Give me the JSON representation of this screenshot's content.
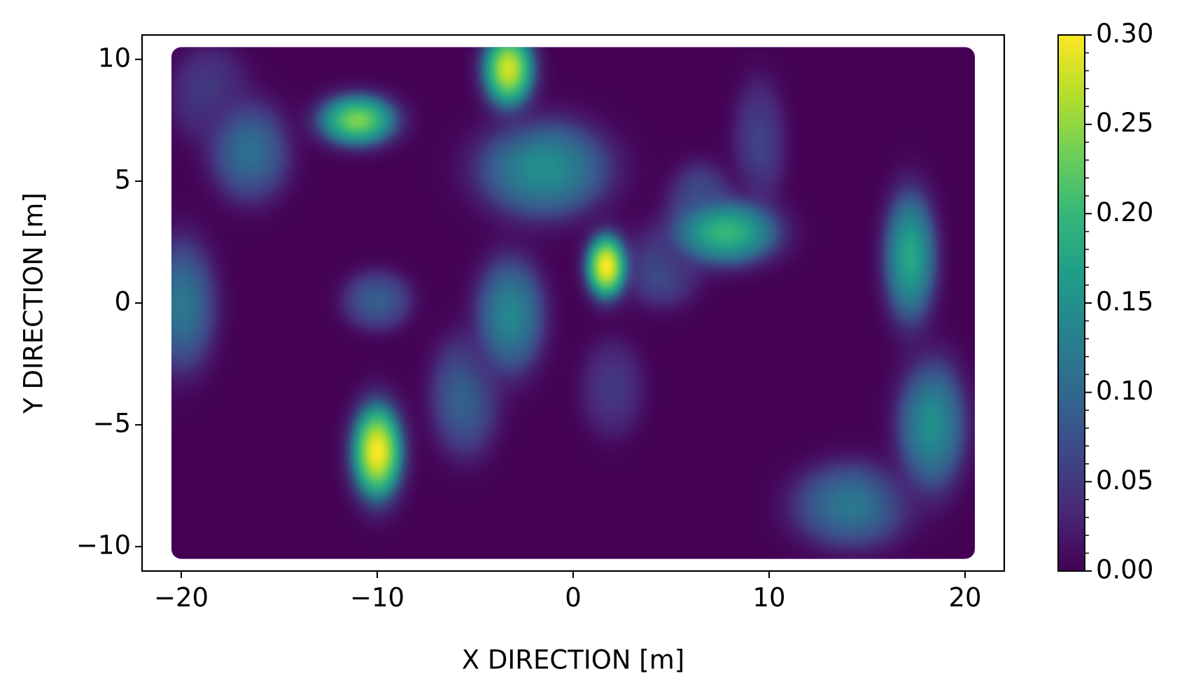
{
  "chart_data": {
    "type": "heatmap",
    "xlabel": "X DIRECTION [m]",
    "ylabel": "Y DIRECTION [m]",
    "xlim": [
      -22,
      22
    ],
    "ylim": [
      -11,
      11
    ],
    "xticks": [
      {
        "value": -20,
        "label": "−20"
      },
      {
        "value": -10,
        "label": "−10"
      },
      0,
      10,
      20
    ],
    "yticks": [
      {
        "value": -10,
        "label": "−10"
      },
      {
        "value": -5,
        "label": "−5"
      },
      0,
      5,
      10
    ],
    "extent": [
      -20.5,
      20.5,
      -10.5,
      10.5
    ],
    "colormap": "viridis",
    "clim": [
      0,
      0.3
    ],
    "cticks": [
      {
        "value": 0,
        "label": "0.00"
      },
      {
        "value": 0.05,
        "label": "0.05"
      },
      {
        "value": 0.1,
        "label": "0.10"
      },
      {
        "value": 0.15,
        "label": "0.15"
      },
      {
        "value": 0.2,
        "label": "0.20"
      },
      {
        "value": 0.25,
        "label": "0.25"
      },
      {
        "value": 0.3,
        "label": "0.30"
      }
    ],
    "blobs": [
      {
        "x": -18.5,
        "y": 8.5,
        "value": 0.06,
        "spread_x": 1.5,
        "spread_y": 1.5
      },
      {
        "x": 9.5,
        "y": 6.5,
        "value": 0.06,
        "spread_x": 1.0,
        "spread_y": 2.0
      },
      {
        "x": 2,
        "y": -3.5,
        "value": 0.05,
        "spread_x": 1.2,
        "spread_y": 1.5
      },
      {
        "x": 4.5,
        "y": 1.5,
        "value": 0.08,
        "spread_x": 1.5,
        "spread_y": 1.2
      },
      {
        "x": -10,
        "y": 0.1,
        "value": 0.09,
        "spread_x": 1.3,
        "spread_y": 0.9
      },
      {
        "x": -5.5,
        "y": -3.8,
        "value": 0.1,
        "spread_x": 1.3,
        "spread_y": 1.8
      },
      {
        "x": 6.5,
        "y": 4,
        "value": 0.1,
        "spread_x": 1.2,
        "spread_y": 1.2
      },
      {
        "x": -16.5,
        "y": 6.2,
        "value": 0.11,
        "spread_x": 1.5,
        "spread_y": 1.5
      },
      {
        "x": -20,
        "y": -0.1,
        "value": 0.12,
        "spread_x": 1.3,
        "spread_y": 2.0
      },
      {
        "x": 14.2,
        "y": -8.3,
        "value": 0.12,
        "spread_x": 2.2,
        "spread_y": 1.3
      },
      {
        "x": -3.2,
        "y": -0.5,
        "value": 0.14,
        "spread_x": 1.3,
        "spread_y": 1.8
      },
      {
        "x": -1.5,
        "y": 5.5,
        "value": 0.15,
        "spread_x": 2.5,
        "spread_y": 1.5
      },
      {
        "x": 18.3,
        "y": -5,
        "value": 0.15,
        "spread_x": 1.3,
        "spread_y": 2.0
      },
      {
        "x": 17.2,
        "y": 1.9,
        "value": 0.18,
        "spread_x": 1.0,
        "spread_y": 2.0
      },
      {
        "x": 7.8,
        "y": 2.9,
        "value": 0.2,
        "spread_x": 2.0,
        "spread_y": 1.0
      },
      {
        "x": -11,
        "y": 7.5,
        "value": 0.24,
        "spread_x": 1.5,
        "spread_y": 0.8
      },
      {
        "x": -3.3,
        "y": 9.6,
        "value": 0.28,
        "spread_x": 1.0,
        "spread_y": 1.2
      },
      {
        "x": 1.7,
        "y": 1.5,
        "value": 0.3,
        "spread_x": 0.8,
        "spread_y": 1.0
      },
      {
        "x": -10,
        "y": -6.1,
        "value": 0.3,
        "spread_x": 1.0,
        "spread_y": 1.5
      }
    ]
  }
}
